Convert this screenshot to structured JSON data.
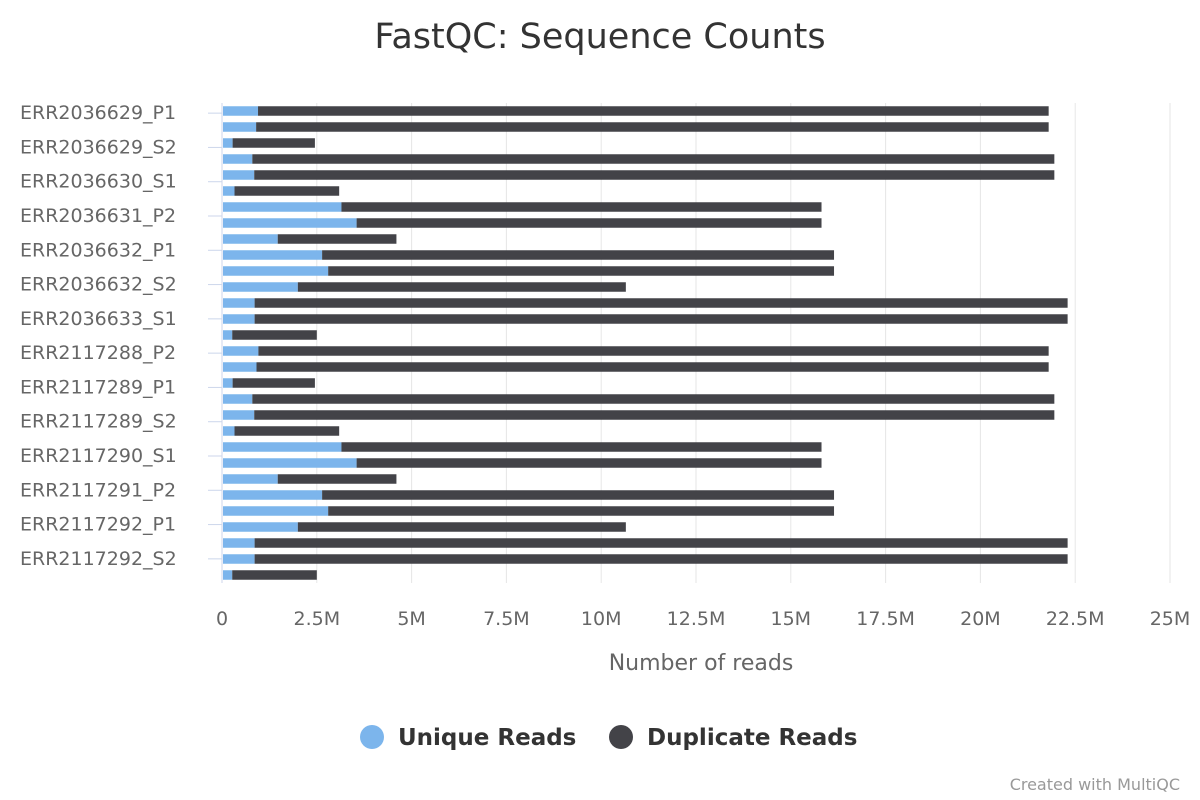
{
  "chart_data": {
    "type": "bar",
    "orientation": "horizontal",
    "stacked": true,
    "title": "FastQC: Sequence Counts",
    "xlabel": "Number of reads",
    "xlim": [
      0,
      25000000
    ],
    "x_ticks": [
      {
        "value": 0,
        "label": "0"
      },
      {
        "value": 2500000,
        "label": "2.5M"
      },
      {
        "value": 5000000,
        "label": "5M"
      },
      {
        "value": 7500000,
        "label": "7.5M"
      },
      {
        "value": 10000000,
        "label": "10M"
      },
      {
        "value": 12500000,
        "label": "12.5M"
      },
      {
        "value": 15000000,
        "label": "15M"
      },
      {
        "value": 17500000,
        "label": "17.5M"
      },
      {
        "value": 20000000,
        "label": "20M"
      },
      {
        "value": 22500000,
        "label": "22.5M"
      },
      {
        "value": 25000000,
        "label": "25M"
      }
    ],
    "grid": true,
    "legend_position": "bottom-center",
    "labeled_categories": [
      "ERR2036629_P1",
      "ERR2036629_S2",
      "ERR2036630_S1",
      "ERR2036631_P2",
      "ERR2036632_P1",
      "ERR2036632_S2",
      "ERR2036633_S1",
      "ERR2117288_P2",
      "ERR2117289_P1",
      "ERR2117289_S2",
      "ERR2117290_S1",
      "ERR2117291_P2",
      "ERR2117292_P1",
      "ERR2117292_S2"
    ],
    "series": [
      {
        "name": "Unique Reads",
        "color": "#7cb5ec",
        "values": [
          950000,
          900000,
          280000,
          800000,
          850000,
          330000,
          3150000,
          3550000,
          1470000,
          2640000,
          2800000,
          2000000,
          860000,
          860000,
          270000,
          960000,
          910000,
          280000,
          800000,
          850000,
          330000,
          3150000,
          3550000,
          1470000,
          2640000,
          2800000,
          2000000,
          860000,
          860000,
          270000
        ]
      },
      {
        "name": "Duplicate Reads",
        "color": "#434348",
        "values": [
          20850000,
          20900000,
          2170000,
          21150000,
          21100000,
          2760000,
          12660000,
          12260000,
          3130000,
          13500000,
          13340000,
          8650000,
          21440000,
          21440000,
          2230000,
          20840000,
          20890000,
          2170000,
          21150000,
          21100000,
          2760000,
          12660000,
          12260000,
          3130000,
          13500000,
          13340000,
          8650000,
          21440000,
          21440000,
          2230000
        ]
      }
    ]
  },
  "credit": "Created with MultiQC"
}
